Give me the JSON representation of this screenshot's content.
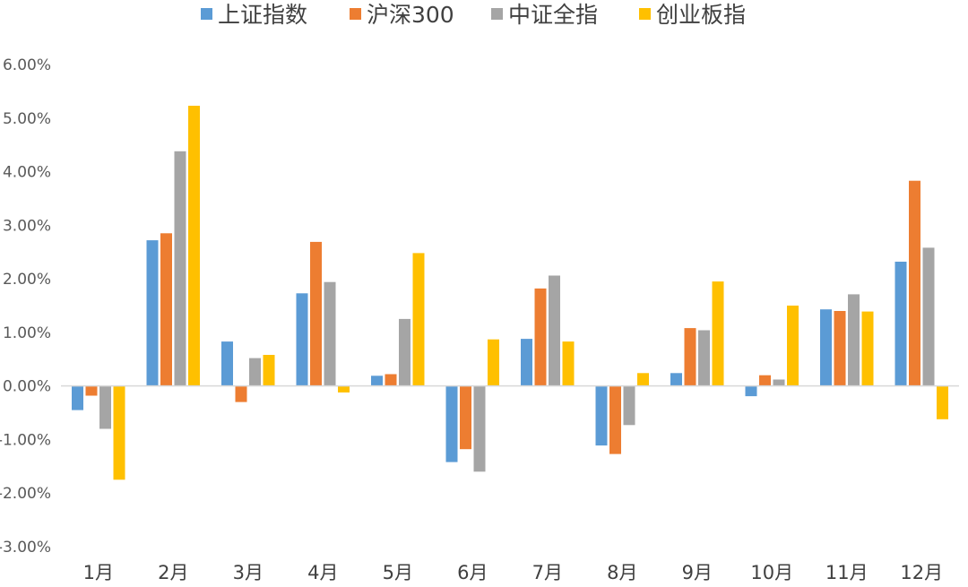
{
  "chart_data": {
    "type": "bar",
    "categories": [
      "1月",
      "2月",
      "3月",
      "4月",
      "5月",
      "6月",
      "7月",
      "8月",
      "9月",
      "10月",
      "11月",
      "12月"
    ],
    "series": [
      {
        "name": "上证指数",
        "color": "#5b9bd5",
        "values": [
          -0.45,
          2.72,
          0.83,
          1.73,
          0.19,
          -1.42,
          0.88,
          -1.11,
          0.24,
          -0.19,
          1.43,
          2.32
        ]
      },
      {
        "name": "沪深300",
        "color": "#ed7d31",
        "values": [
          -0.18,
          2.85,
          -0.3,
          2.69,
          0.22,
          -1.18,
          1.82,
          -1.27,
          1.08,
          0.2,
          1.4,
          3.83
        ]
      },
      {
        "name": "中证全指",
        "color": "#a5a5a5",
        "values": [
          -0.8,
          4.38,
          0.52,
          1.94,
          1.25,
          -1.6,
          2.06,
          -0.73,
          1.04,
          0.12,
          1.71,
          2.58
        ]
      },
      {
        "name": "创业板指",
        "color": "#ffc000",
        "values": [
          -1.75,
          5.23,
          0.58,
          -0.12,
          2.48,
          0.87,
          0.83,
          0.24,
          1.95,
          1.5,
          1.39,
          -0.62
        ]
      }
    ],
    "ylim": [
      -3.0,
      6.0
    ],
    "yticks": [
      6,
      5,
      4,
      3,
      2,
      1,
      0,
      -1,
      -2,
      -3
    ],
    "ytick_format": "percent_2dp",
    "legend_position": "top-center",
    "grid": false,
    "title": "",
    "xlabel": "",
    "ylabel": ""
  }
}
